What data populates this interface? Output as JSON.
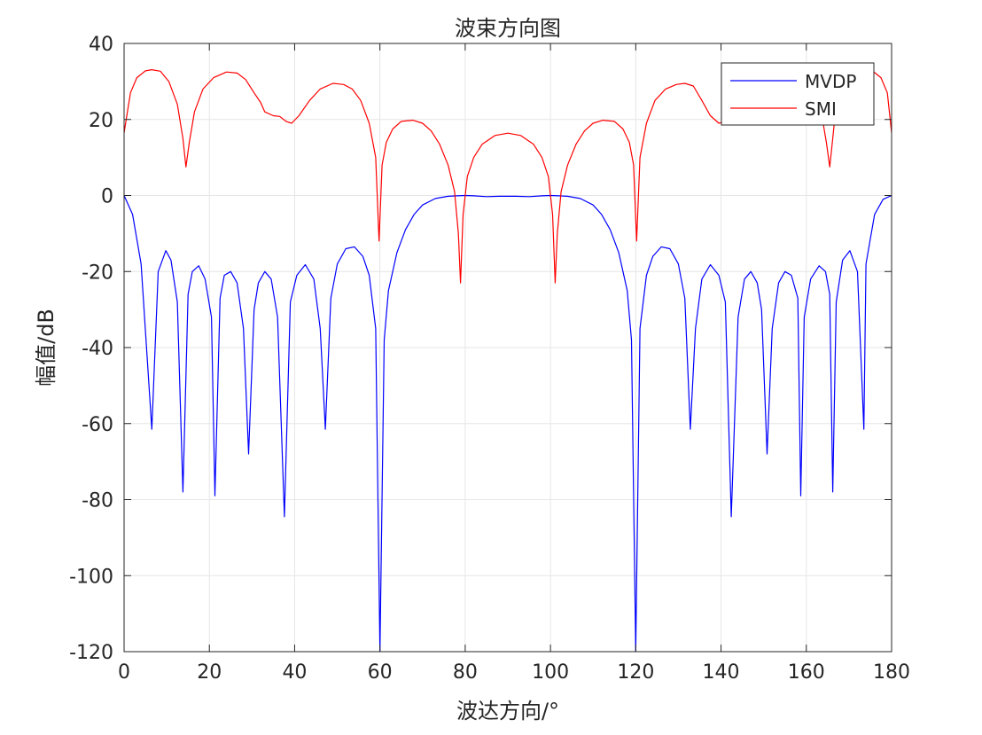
{
  "chart_data": {
    "type": "line",
    "title": "波束方向图",
    "xlabel": "波达方向/°",
    "ylabel": "幅值/dB",
    "xlim": [
      0,
      180
    ],
    "ylim": [
      -120,
      40
    ],
    "xticks": [
      0,
      20,
      40,
      60,
      80,
      100,
      120,
      140,
      160,
      180
    ],
    "yticks": [
      -120,
      -100,
      -80,
      -60,
      -40,
      -20,
      0,
      20,
      40
    ],
    "grid": true,
    "legend_position": "top-right",
    "series": [
      {
        "name": "MVDP",
        "color": "#0000ff",
        "x": [
          0,
          2,
          4,
          6.5,
          8,
          9.8,
          11,
          12.5,
          13.8,
          15,
          16,
          17.5,
          19,
          20.5,
          21.3,
          22.5,
          23.5,
          25,
          26.5,
          28,
          29.2,
          30.5,
          31.5,
          33,
          34.5,
          36,
          37.6,
          39,
          40.5,
          42.5,
          44.5,
          46,
          47.2,
          48.5,
          50,
          52,
          54,
          56,
          57.5,
          59,
          60,
          61,
          62,
          64,
          66,
          68,
          70,
          73,
          76,
          78,
          80,
          82,
          85,
          88,
          90,
          92,
          95,
          98,
          100,
          102,
          104,
          107,
          110,
          112,
          114,
          116,
          118,
          119,
          120,
          121,
          122.5,
          124,
          126,
          128,
          130,
          131.5,
          132.8,
          134,
          135.5,
          137.5,
          139.5,
          141,
          142.4,
          144,
          145.5,
          147,
          148.5,
          149.5,
          150.8,
          152,
          153.5,
          155,
          156.5,
          158,
          158.7,
          159.5,
          161,
          163,
          164.5,
          165.5,
          166.2,
          167,
          168.5,
          170.2,
          172,
          173.5,
          174,
          176,
          178,
          180
        ],
        "y": [
          0,
          -5,
          -18,
          -61.5,
          -20,
          -14.5,
          -17,
          -28,
          -78,
          -26,
          -20,
          -18.5,
          -22,
          -32,
          -79,
          -27,
          -21,
          -20,
          -23,
          -35,
          -68,
          -30,
          -23,
          -20,
          -22,
          -32,
          -84.5,
          -28,
          -21,
          -18.2,
          -22,
          -35,
          -61.5,
          -27,
          -18,
          -14,
          -13.5,
          -16,
          -21,
          -35,
          -120,
          -38,
          -25,
          -15,
          -9,
          -5,
          -2.5,
          -0.8,
          -0.2,
          -0.1,
          0,
          -0.1,
          -0.3,
          -0.2,
          -0.2,
          -0.2,
          -0.3,
          -0.1,
          0,
          -0.1,
          -0.2,
          -0.8,
          -2.5,
          -5,
          -9,
          -15,
          -25,
          -38,
          -120,
          -35,
          -21,
          -16,
          -13.5,
          -14,
          -18,
          -27,
          -61.5,
          -35,
          -22,
          -18.2,
          -21,
          -28,
          -84.5,
          -32,
          -22,
          -20,
          -23,
          -30,
          -68,
          -35,
          -23,
          -20,
          -21,
          -27,
          -79,
          -32,
          -22,
          -18.5,
          -20,
          -26,
          -78,
          -28,
          -17,
          -14.5,
          -20,
          -61.5,
          -18,
          -5,
          -1,
          0
        ]
      },
      {
        "name": "SMI",
        "color": "#ff0000",
        "x": [
          0,
          1.5,
          3,
          5,
          6.5,
          8.5,
          10.5,
          12.5,
          13.8,
          14.5,
          15.3,
          16.5,
          18.5,
          21,
          24,
          26.5,
          28.5,
          30.5,
          32,
          33,
          35,
          36.5,
          38,
          39.3,
          41,
          43.5,
          46,
          49,
          51.5,
          53.5,
          55.5,
          57.5,
          59,
          59.8,
          60.5,
          61.5,
          63,
          65,
          67.7,
          70,
          72,
          74,
          76,
          77.5,
          78.4,
          78.9,
          79.5,
          80.5,
          82,
          84,
          87,
          90,
          93,
          96,
          98,
          99.5,
          100.5,
          101.1,
          101.6,
          102.5,
          104,
          106,
          108,
          110,
          112.3,
          115,
          117,
          118.5,
          119.5,
          120.2,
          121,
          122.5,
          124.5,
          127,
          129.5,
          131.5,
          133.5,
          135.5,
          137.5,
          139.5,
          141,
          142.2,
          144,
          146,
          148.5,
          151,
          154,
          156,
          157.5,
          159,
          161.5,
          163.5,
          164.7,
          165.5,
          166.2,
          167,
          169,
          171,
          173.5,
          175.5,
          177.5,
          179,
          180
        ],
        "y": [
          16.5,
          27,
          31,
          32.8,
          33.1,
          32.7,
          30,
          24,
          15,
          7.5,
          14,
          22,
          28,
          31,
          32.5,
          32.2,
          30.5,
          27,
          24.5,
          22,
          21,
          20.8,
          19.5,
          19,
          21,
          25,
          28,
          29.5,
          29.2,
          28,
          25,
          19,
          10,
          -12,
          8,
          14,
          17.5,
          19.5,
          19.8,
          19,
          17,
          13.5,
          8,
          1,
          -10,
          -23,
          -5,
          5,
          10,
          13.5,
          15.8,
          16.4,
          15.8,
          13.5,
          10,
          5,
          -5,
          -23,
          -10,
          1,
          8,
          13.5,
          17,
          19,
          19.8,
          19.5,
          17.5,
          14,
          8,
          -12,
          10,
          19,
          25,
          28,
          29.2,
          29.5,
          28.8,
          25,
          21,
          19,
          19.5,
          20.8,
          21,
          22,
          24.5,
          27,
          30.5,
          32.2,
          32.5,
          31,
          28,
          22,
          14,
          7.5,
          15,
          24,
          30,
          32.7,
          33.1,
          32.8,
          31,
          27,
          16.5
        ]
      }
    ]
  }
}
